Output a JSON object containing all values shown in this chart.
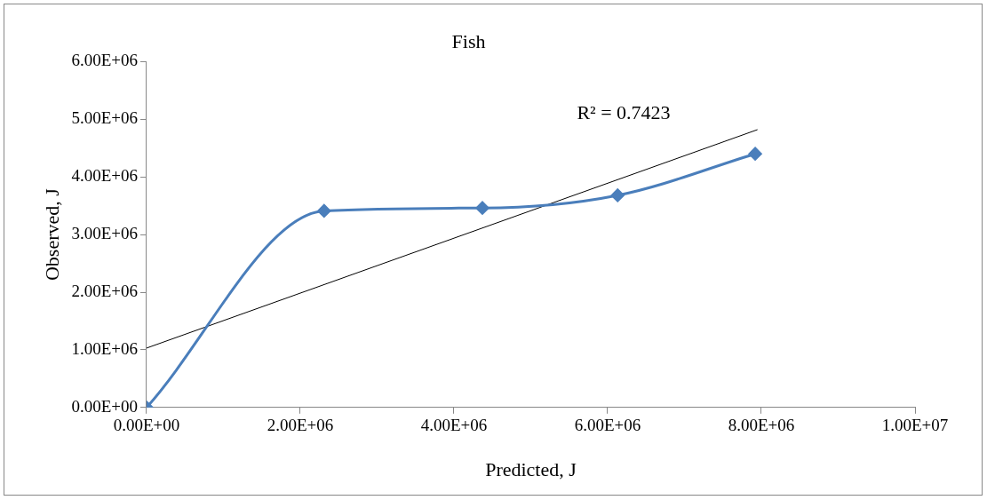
{
  "chart_data": {
    "type": "line",
    "title": "Fish",
    "xlabel": "Predicted, J",
    "ylabel": "Observed, J",
    "xlim": [
      0,
      10000000
    ],
    "ylim": [
      0,
      6000000
    ],
    "xticks": [
      {
        "value": 0,
        "label": "0.00E+00"
      },
      {
        "value": 2000000,
        "label": "2.00E+06"
      },
      {
        "value": 4000000,
        "label": "4.00E+06"
      },
      {
        "value": 6000000,
        "label": "6.00E+06"
      },
      {
        "value": 8000000,
        "label": "8.00E+06"
      },
      {
        "value": 10000000,
        "label": "1.00E+07"
      }
    ],
    "yticks": [
      {
        "value": 0,
        "label": "0.00E+00"
      },
      {
        "value": 1000000,
        "label": "1.00E+06"
      },
      {
        "value": 2000000,
        "label": "2.00E+06"
      },
      {
        "value": 3000000,
        "label": "3.00E+06"
      },
      {
        "value": 4000000,
        "label": "4.00E+06"
      },
      {
        "value": 5000000,
        "label": "5.00E+06"
      },
      {
        "value": 6000000,
        "label": "6.00E+06"
      }
    ],
    "series": [
      {
        "color": "#4a7ebb",
        "marker": "diamond",
        "x": [
          0,
          2310000,
          4370000,
          6130000,
          7920000
        ],
        "values": [
          0,
          3410000,
          3460000,
          3680000,
          4400000
        ]
      },
      {
        "color": "#000000",
        "marker": "none",
        "x": [
          0,
          7950000
        ],
        "values": [
          1030000,
          4820000
        ]
      }
    ],
    "annotations": [
      "R² = 0.7423"
    ],
    "legend": false
  }
}
